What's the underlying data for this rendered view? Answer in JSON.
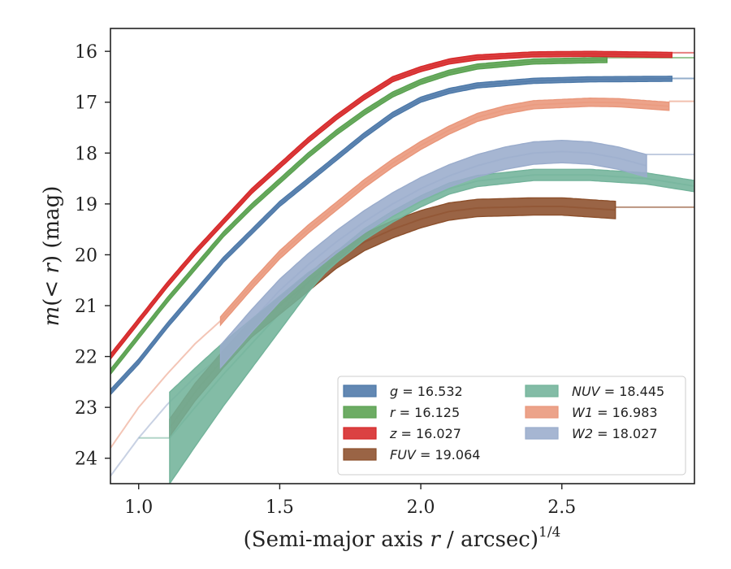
{
  "chart_data": {
    "type": "line",
    "xlabel": "(Semi-major axis r / arcsec)^1/4",
    "xlabel_parts": {
      "pre": "(Semi-major axis ",
      "var": "r",
      "post": " / arcsec)",
      "sup": "1/4"
    },
    "ylabel": "m(< r) (mag)",
    "ylabel_parts": {
      "var": "m",
      "mid": "(< ",
      "var2": "r",
      "post": ") (mag)"
    },
    "xlim": [
      0.9,
      2.97
    ],
    "ylim": [
      24.5,
      15.55
    ],
    "y_inverted": true,
    "xticks": [
      1.0,
      1.5,
      2.0,
      2.5
    ],
    "xtick_labels": [
      "1.0",
      "1.5",
      "2.0",
      "2.5"
    ],
    "yticks": [
      16,
      17,
      18,
      19,
      20,
      21,
      22,
      23,
      24
    ],
    "ytick_labels": [
      "16",
      "17",
      "18",
      "19",
      "20",
      "21",
      "22",
      "23",
      "24"
    ],
    "grid": false,
    "legend_position": "lower-right",
    "series": [
      {
        "name": "g",
        "value": "16.532",
        "color": "#4c78a8",
        "band": 0.05,
        "asymptote": 16.532,
        "x_end": 2.89,
        "ext_start": 1.0,
        "points": [
          [
            0.9,
            22.7
          ],
          [
            1.0,
            22.1
          ],
          [
            1.1,
            21.4
          ],
          [
            1.2,
            20.75
          ],
          [
            1.3,
            20.1
          ],
          [
            1.4,
            19.55
          ],
          [
            1.5,
            19.0
          ],
          [
            1.6,
            18.55
          ],
          [
            1.7,
            18.1
          ],
          [
            1.8,
            17.65
          ],
          [
            1.9,
            17.25
          ],
          [
            2.0,
            16.95
          ],
          [
            2.1,
            16.78
          ],
          [
            2.2,
            16.67
          ],
          [
            2.4,
            16.58
          ],
          [
            2.6,
            16.55
          ],
          [
            2.89,
            16.54
          ]
        ]
      },
      {
        "name": "r",
        "value": "16.125",
        "color": "#59a14f",
        "band": 0.05,
        "asymptote": 16.125,
        "x_end": 2.66,
        "ext_start": 1.0,
        "points": [
          [
            0.9,
            22.3
          ],
          [
            1.0,
            21.6
          ],
          [
            1.1,
            20.9
          ],
          [
            1.2,
            20.25
          ],
          [
            1.3,
            19.6
          ],
          [
            1.4,
            19.05
          ],
          [
            1.5,
            18.55
          ],
          [
            1.6,
            18.05
          ],
          [
            1.7,
            17.6
          ],
          [
            1.8,
            17.2
          ],
          [
            1.9,
            16.85
          ],
          [
            2.0,
            16.6
          ],
          [
            2.1,
            16.42
          ],
          [
            2.2,
            16.3
          ],
          [
            2.4,
            16.2
          ],
          [
            2.66,
            16.17
          ]
        ]
      },
      {
        "name": "z",
        "value": "16.027",
        "color": "#d62728",
        "band": 0.05,
        "asymptote": 16.027,
        "x_end": 2.89,
        "ext_start": 1.0,
        "points": [
          [
            0.9,
            22.0
          ],
          [
            1.0,
            21.3
          ],
          [
            1.1,
            20.6
          ],
          [
            1.2,
            19.95
          ],
          [
            1.3,
            19.35
          ],
          [
            1.4,
            18.75
          ],
          [
            1.5,
            18.25
          ],
          [
            1.6,
            17.75
          ],
          [
            1.7,
            17.3
          ],
          [
            1.8,
            16.9
          ],
          [
            1.9,
            16.55
          ],
          [
            2.0,
            16.35
          ],
          [
            2.1,
            16.2
          ],
          [
            2.2,
            16.12
          ],
          [
            2.4,
            16.06
          ],
          [
            2.6,
            16.05
          ],
          [
            2.89,
            16.07
          ]
        ]
      },
      {
        "name": "FUV",
        "value": "19.064",
        "color": "#8c4f2b",
        "band": 0.17,
        "asymptote": 19.064,
        "x_start": 1.11,
        "x_end": 2.69,
        "ext_start": 1.11,
        "points": [
          [
            1.11,
            23.4
          ],
          [
            1.2,
            22.7
          ],
          [
            1.3,
            22.05
          ],
          [
            1.4,
            21.45
          ],
          [
            1.5,
            21.0
          ],
          [
            1.6,
            20.55
          ],
          [
            1.7,
            20.1
          ],
          [
            1.8,
            19.75
          ],
          [
            1.9,
            19.5
          ],
          [
            2.0,
            19.3
          ],
          [
            2.1,
            19.15
          ],
          [
            2.2,
            19.08
          ],
          [
            2.4,
            19.05
          ],
          [
            2.5,
            19.05
          ],
          [
            2.69,
            19.12
          ]
        ]
      },
      {
        "name": "NUV",
        "value": "18.445",
        "color": "#72b39a",
        "band_start": 0.9,
        "band": 0.11,
        "asymptote": 18.445,
        "x_start": 1.11,
        "x_end": 2.97,
        "ext_start": 1.0,
        "points": [
          [
            1.11,
            23.6
          ],
          [
            1.2,
            23.0
          ],
          [
            1.3,
            22.35
          ],
          [
            1.4,
            21.75
          ],
          [
            1.5,
            21.15
          ],
          [
            1.6,
            20.55
          ],
          [
            1.7,
            20.05
          ],
          [
            1.8,
            19.6
          ],
          [
            1.9,
            19.25
          ],
          [
            2.0,
            18.95
          ],
          [
            2.1,
            18.7
          ],
          [
            2.2,
            18.55
          ],
          [
            2.4,
            18.43
          ],
          [
            2.6,
            18.43
          ],
          [
            2.8,
            18.5
          ],
          [
            2.97,
            18.65
          ]
        ]
      },
      {
        "name": "W1",
        "value": "16.983",
        "color": "#e9967a",
        "band": 0.08,
        "asymptote": 16.983,
        "x_start": 1.29,
        "x_end": 2.88,
        "ext_start": 0.9,
        "points": [
          [
            0.9,
            23.8
          ],
          [
            1.0,
            23.0
          ],
          [
            1.1,
            22.35
          ],
          [
            1.2,
            21.75
          ],
          [
            1.29,
            21.3
          ],
          [
            1.4,
            20.6
          ],
          [
            1.5,
            20.0
          ],
          [
            1.6,
            19.5
          ],
          [
            1.7,
            19.05
          ],
          [
            1.8,
            18.6
          ],
          [
            1.9,
            18.2
          ],
          [
            2.0,
            17.85
          ],
          [
            2.1,
            17.55
          ],
          [
            2.2,
            17.3
          ],
          [
            2.3,
            17.15
          ],
          [
            2.4,
            17.05
          ],
          [
            2.6,
            17.0
          ],
          [
            2.7,
            17.01
          ],
          [
            2.88,
            17.08
          ]
        ]
      },
      {
        "name": "W2",
        "value": "18.027",
        "color": "#9aaccc",
        "band": 0.22,
        "asymptote": 18.027,
        "x_start": 1.29,
        "x_end": 2.8,
        "ext_start": 0.9,
        "points": [
          [
            0.9,
            24.35
          ],
          [
            1.0,
            23.6
          ],
          [
            1.1,
            22.95
          ],
          [
            1.2,
            22.4
          ],
          [
            1.29,
            22.0
          ],
          [
            1.4,
            21.3
          ],
          [
            1.5,
            20.7
          ],
          [
            1.6,
            20.2
          ],
          [
            1.7,
            19.75
          ],
          [
            1.8,
            19.35
          ],
          [
            1.9,
            19.0
          ],
          [
            2.0,
            18.7
          ],
          [
            2.1,
            18.45
          ],
          [
            2.2,
            18.25
          ],
          [
            2.3,
            18.1
          ],
          [
            2.4,
            18.0
          ],
          [
            2.5,
            17.97
          ],
          [
            2.6,
            18.0
          ],
          [
            2.7,
            18.1
          ],
          [
            2.8,
            18.25
          ]
        ]
      }
    ]
  }
}
